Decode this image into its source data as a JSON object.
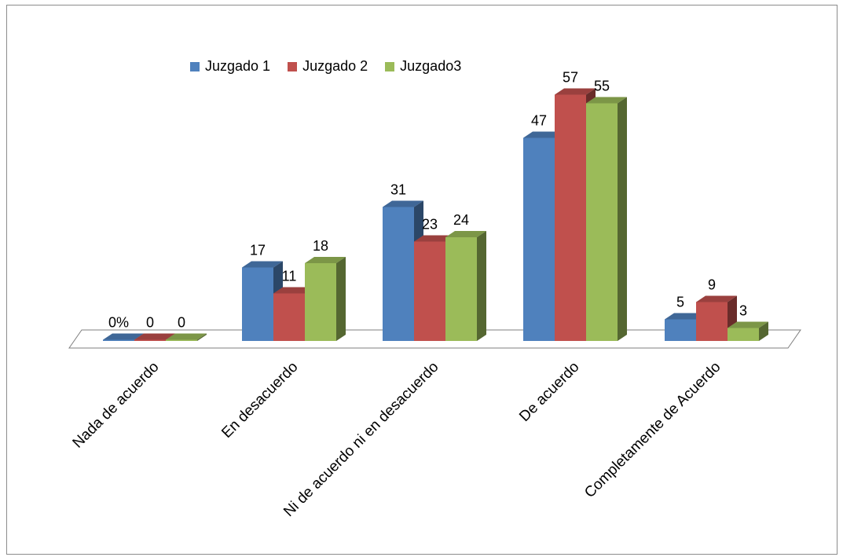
{
  "chart_data": {
    "type": "bar",
    "title": "",
    "categories": [
      "Nada de acuerdo",
      "En desacuerdo",
      "Ni de acuerdo ni en desacuerdo",
      "De acuerdo",
      "Completamente de Acuerdo"
    ],
    "series": [
      {
        "name": "Juzgado 1",
        "values": [
          0,
          17,
          31,
          47,
          5
        ],
        "labels": [
          "0%",
          "17",
          "31",
          "47",
          "5"
        ],
        "color": "#4F81BD"
      },
      {
        "name": "Juzgado 2",
        "values": [
          0,
          11,
          23,
          57,
          9
        ],
        "labels": [
          "0",
          "11",
          "23",
          "57",
          "9"
        ],
        "color": "#C0504D"
      },
      {
        "name": "Juzgado3",
        "values": [
          0,
          18,
          24,
          55,
          3
        ],
        "labels": [
          "0",
          "18",
          "24",
          "55",
          "3"
        ],
        "color": "#9BBB59"
      }
    ],
    "ylim": [
      0,
      60
    ],
    "grid": false,
    "legend_position": "top"
  }
}
